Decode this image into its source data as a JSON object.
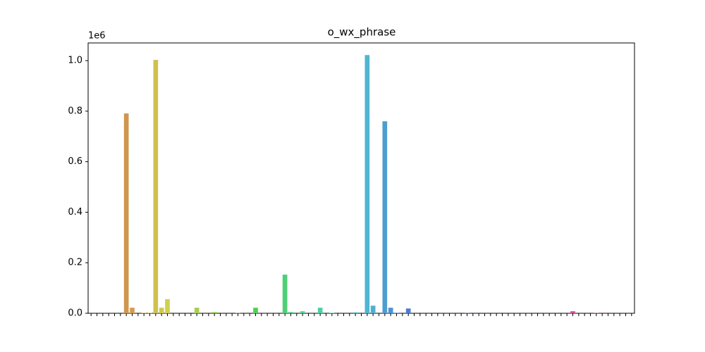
{
  "chart_data": {
    "type": "bar",
    "title": "o_wx_phrase",
    "categories": [
      null,
      null,
      null,
      null,
      null,
      null,
      null,
      null,
      null,
      null,
      null,
      null,
      null,
      null,
      null,
      null,
      null,
      null,
      null,
      null,
      null,
      null,
      null,
      null,
      null,
      null,
      null,
      null,
      null,
      null,
      null,
      null,
      null,
      null,
      null,
      null,
      null,
      null,
      null,
      null,
      null,
      null,
      null,
      null,
      null,
      null,
      null,
      null,
      null,
      null,
      null,
      null,
      null,
      null,
      null,
      null,
      null,
      null,
      null,
      null,
      null,
      null,
      null,
      null,
      null,
      null,
      null,
      null,
      null,
      null,
      null,
      null,
      null,
      null,
      null,
      null,
      null,
      null,
      null,
      null,
      null,
      null,
      null,
      null,
      null,
      null,
      null,
      null,
      null,
      null,
      null,
      null,
      null
    ],
    "values": [
      0,
      0,
      0,
      0,
      0,
      0,
      791000,
      22000,
      0,
      2000,
      2000,
      1003000,
      22000,
      56000,
      0,
      0,
      0,
      0,
      22000,
      0,
      0,
      5000,
      0,
      0,
      0,
      1000,
      0,
      0,
      22000,
      0,
      0,
      0,
      0,
      153000,
      5000,
      0,
      8000,
      0,
      0,
      22000,
      0,
      2000,
      0,
      0,
      0,
      4000,
      0,
      1022000,
      30000,
      0,
      760000,
      22000,
      2000,
      0,
      19000,
      0,
      0,
      0,
      0,
      0,
      0,
      0,
      0,
      0,
      1000,
      0,
      0,
      0,
      0,
      0,
      0,
      0,
      0,
      0,
      0,
      0,
      0,
      0,
      0,
      0,
      0,
      0,
      8000,
      0,
      0,
      0,
      1000,
      0,
      0,
      0,
      0,
      0,
      0
    ],
    "palette": "husl",
    "ylim": [
      0,
      1070000
    ],
    "yticks": [
      {
        "value": 0,
        "label": "0.0"
      },
      {
        "value": 200000,
        "label": "0.2"
      },
      {
        "value": 400000,
        "label": "0.4"
      },
      {
        "value": 600000,
        "label": "0.6"
      },
      {
        "value": 800000,
        "label": "0.8"
      },
      {
        "value": 1000000,
        "label": "1.0"
      }
    ],
    "y_offset_label": "1e6",
    "grid": false
  }
}
